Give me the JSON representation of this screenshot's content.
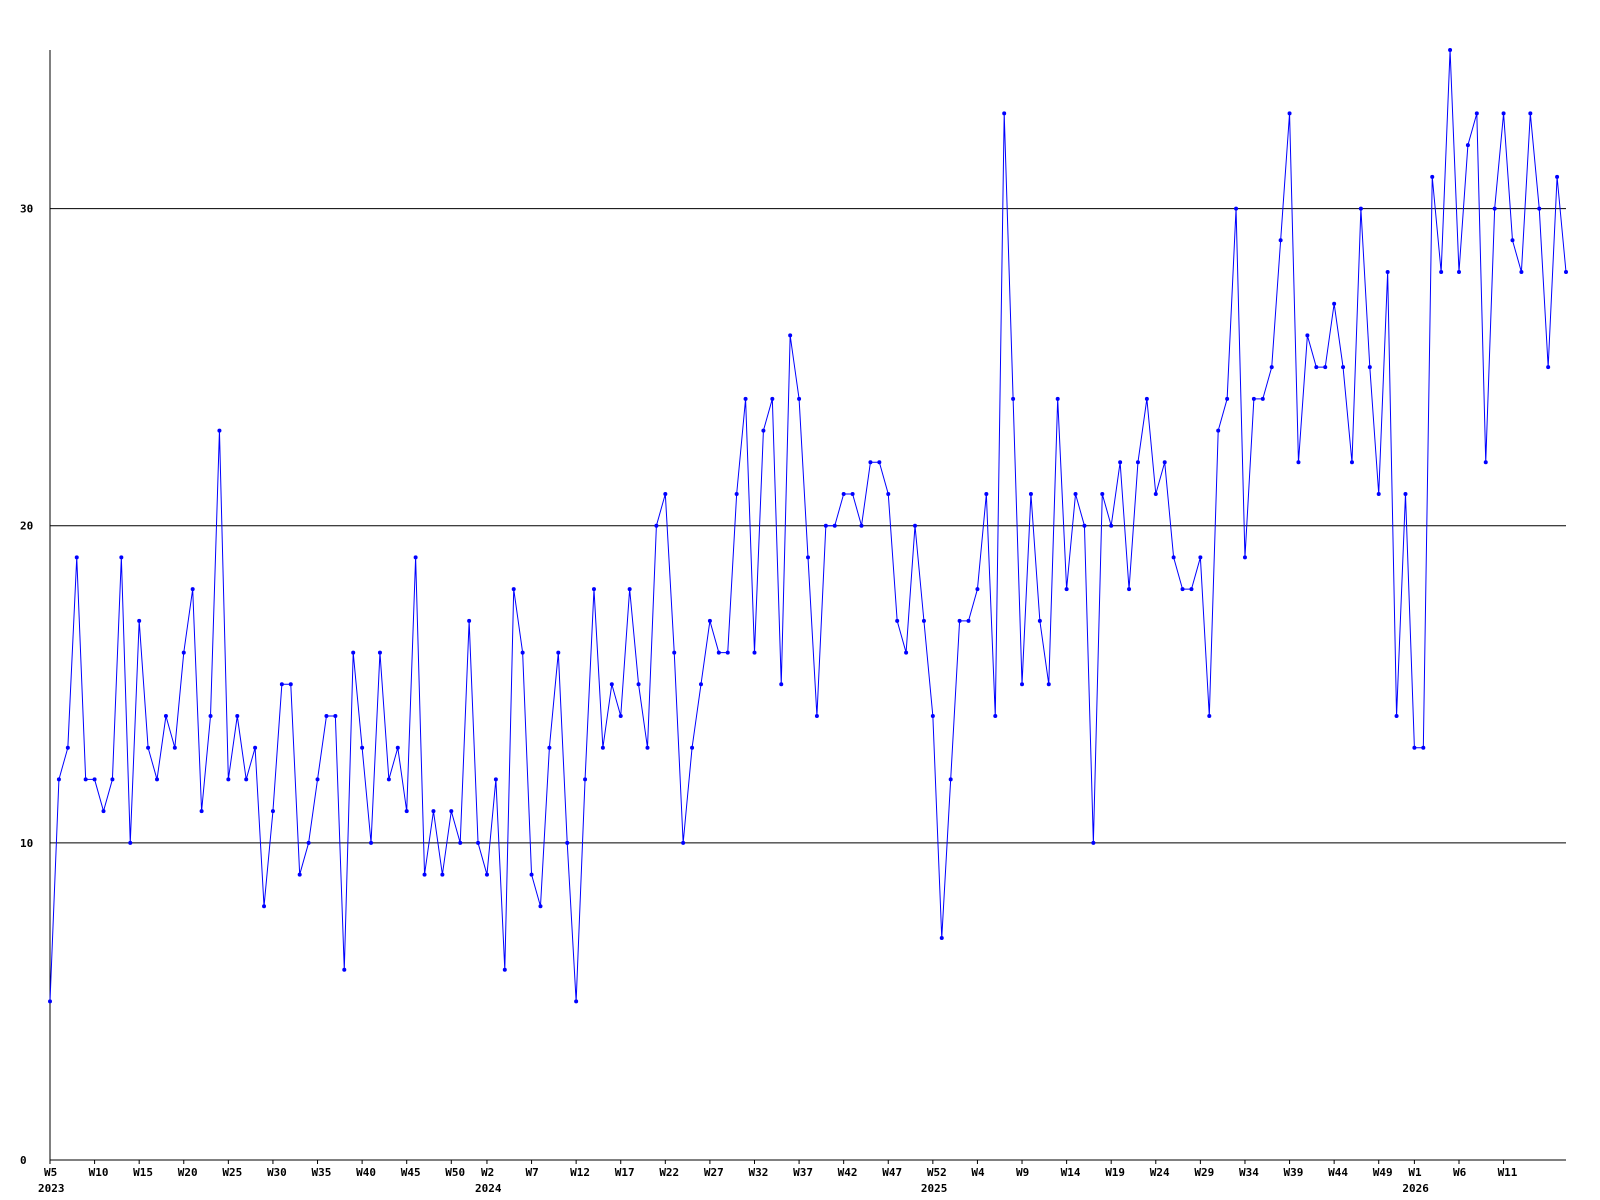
{
  "chart_data": {
    "type": "line",
    "title": "",
    "xlabel": "",
    "ylabel": "",
    "ylim": [
      0,
      35
    ],
    "y_ticks": [
      0,
      10,
      20,
      30
    ],
    "grid": "horizontal",
    "colors": {
      "series": "#0000ff",
      "axis": "#000000",
      "grid": "#000000",
      "background": "#ffffff"
    },
    "x_tick_labels": [
      {
        "index": 0,
        "label": "W5",
        "year": "2023"
      },
      {
        "index": 5,
        "label": "W10"
      },
      {
        "index": 10,
        "label": "W15"
      },
      {
        "index": 15,
        "label": "W20"
      },
      {
        "index": 20,
        "label": "W25"
      },
      {
        "index": 25,
        "label": "W30"
      },
      {
        "index": 30,
        "label": "W35"
      },
      {
        "index": 35,
        "label": "W40"
      },
      {
        "index": 40,
        "label": "W45"
      },
      {
        "index": 45,
        "label": "W50"
      },
      {
        "index": 49,
        "label": "W2",
        "year": "2024"
      },
      {
        "index": 54,
        "label": "W7"
      },
      {
        "index": 59,
        "label": "W12"
      },
      {
        "index": 64,
        "label": "W17"
      },
      {
        "index": 69,
        "label": "W22"
      },
      {
        "index": 74,
        "label": "W27"
      },
      {
        "index": 79,
        "label": "W32"
      },
      {
        "index": 84,
        "label": "W37"
      },
      {
        "index": 89,
        "label": "W42"
      },
      {
        "index": 94,
        "label": "W47"
      },
      {
        "index": 99,
        "label": "W52",
        "year": "2025"
      },
      {
        "index": 104,
        "label": "W4"
      },
      {
        "index": 109,
        "label": "W9"
      },
      {
        "index": 114,
        "label": "W14"
      },
      {
        "index": 119,
        "label": "W19"
      },
      {
        "index": 124,
        "label": "W24"
      },
      {
        "index": 129,
        "label": "W29"
      },
      {
        "index": 134,
        "label": "W34"
      },
      {
        "index": 139,
        "label": "W39"
      },
      {
        "index": 144,
        "label": "W44"
      },
      {
        "index": 149,
        "label": "W49"
      },
      {
        "index": 153,
        "label": "W1",
        "year": "2026"
      },
      {
        "index": 158,
        "label": "W6"
      },
      {
        "index": 163,
        "label": "W11"
      }
    ],
    "series": [
      {
        "values": [
          5,
          12,
          13,
          19,
          12,
          12,
          11,
          12,
          19,
          10,
          17,
          13,
          12,
          14,
          13,
          16,
          18,
          11,
          14,
          23,
          12,
          14,
          12,
          13,
          8,
          11,
          15,
          15,
          9,
          10,
          12,
          14,
          14,
          6,
          16,
          13,
          10,
          16,
          12,
          13,
          11,
          19,
          9,
          11,
          9,
          11,
          10,
          17,
          10,
          9,
          12,
          6,
          18,
          16,
          9,
          8,
          13,
          16,
          10,
          5,
          12,
          18,
          13,
          15,
          14,
          18,
          15,
          13,
          20,
          21,
          16,
          10,
          13,
          15,
          17,
          16,
          16,
          21,
          24,
          16,
          23,
          24,
          15,
          26,
          24,
          19,
          14,
          20,
          20,
          21,
          21,
          20,
          22,
          22,
          21,
          17,
          16,
          20,
          17,
          14,
          7,
          12,
          17,
          17,
          18,
          21,
          14,
          33,
          24,
          15,
          21,
          17,
          15,
          24,
          18,
          21,
          20,
          10,
          21,
          20,
          22,
          18,
          22,
          24,
          21,
          22,
          19,
          18,
          18,
          19,
          14,
          23,
          24,
          30,
          19,
          24,
          24,
          25,
          29,
          33,
          22,
          26,
          25,
          25,
          27,
          25,
          22,
          30,
          25,
          21,
          28,
          14,
          21,
          13,
          13,
          31,
          28,
          35,
          28,
          32,
          33,
          22,
          30,
          33,
          29,
          28,
          33,
          30,
          25,
          31,
          28
        ]
      }
    ]
  }
}
